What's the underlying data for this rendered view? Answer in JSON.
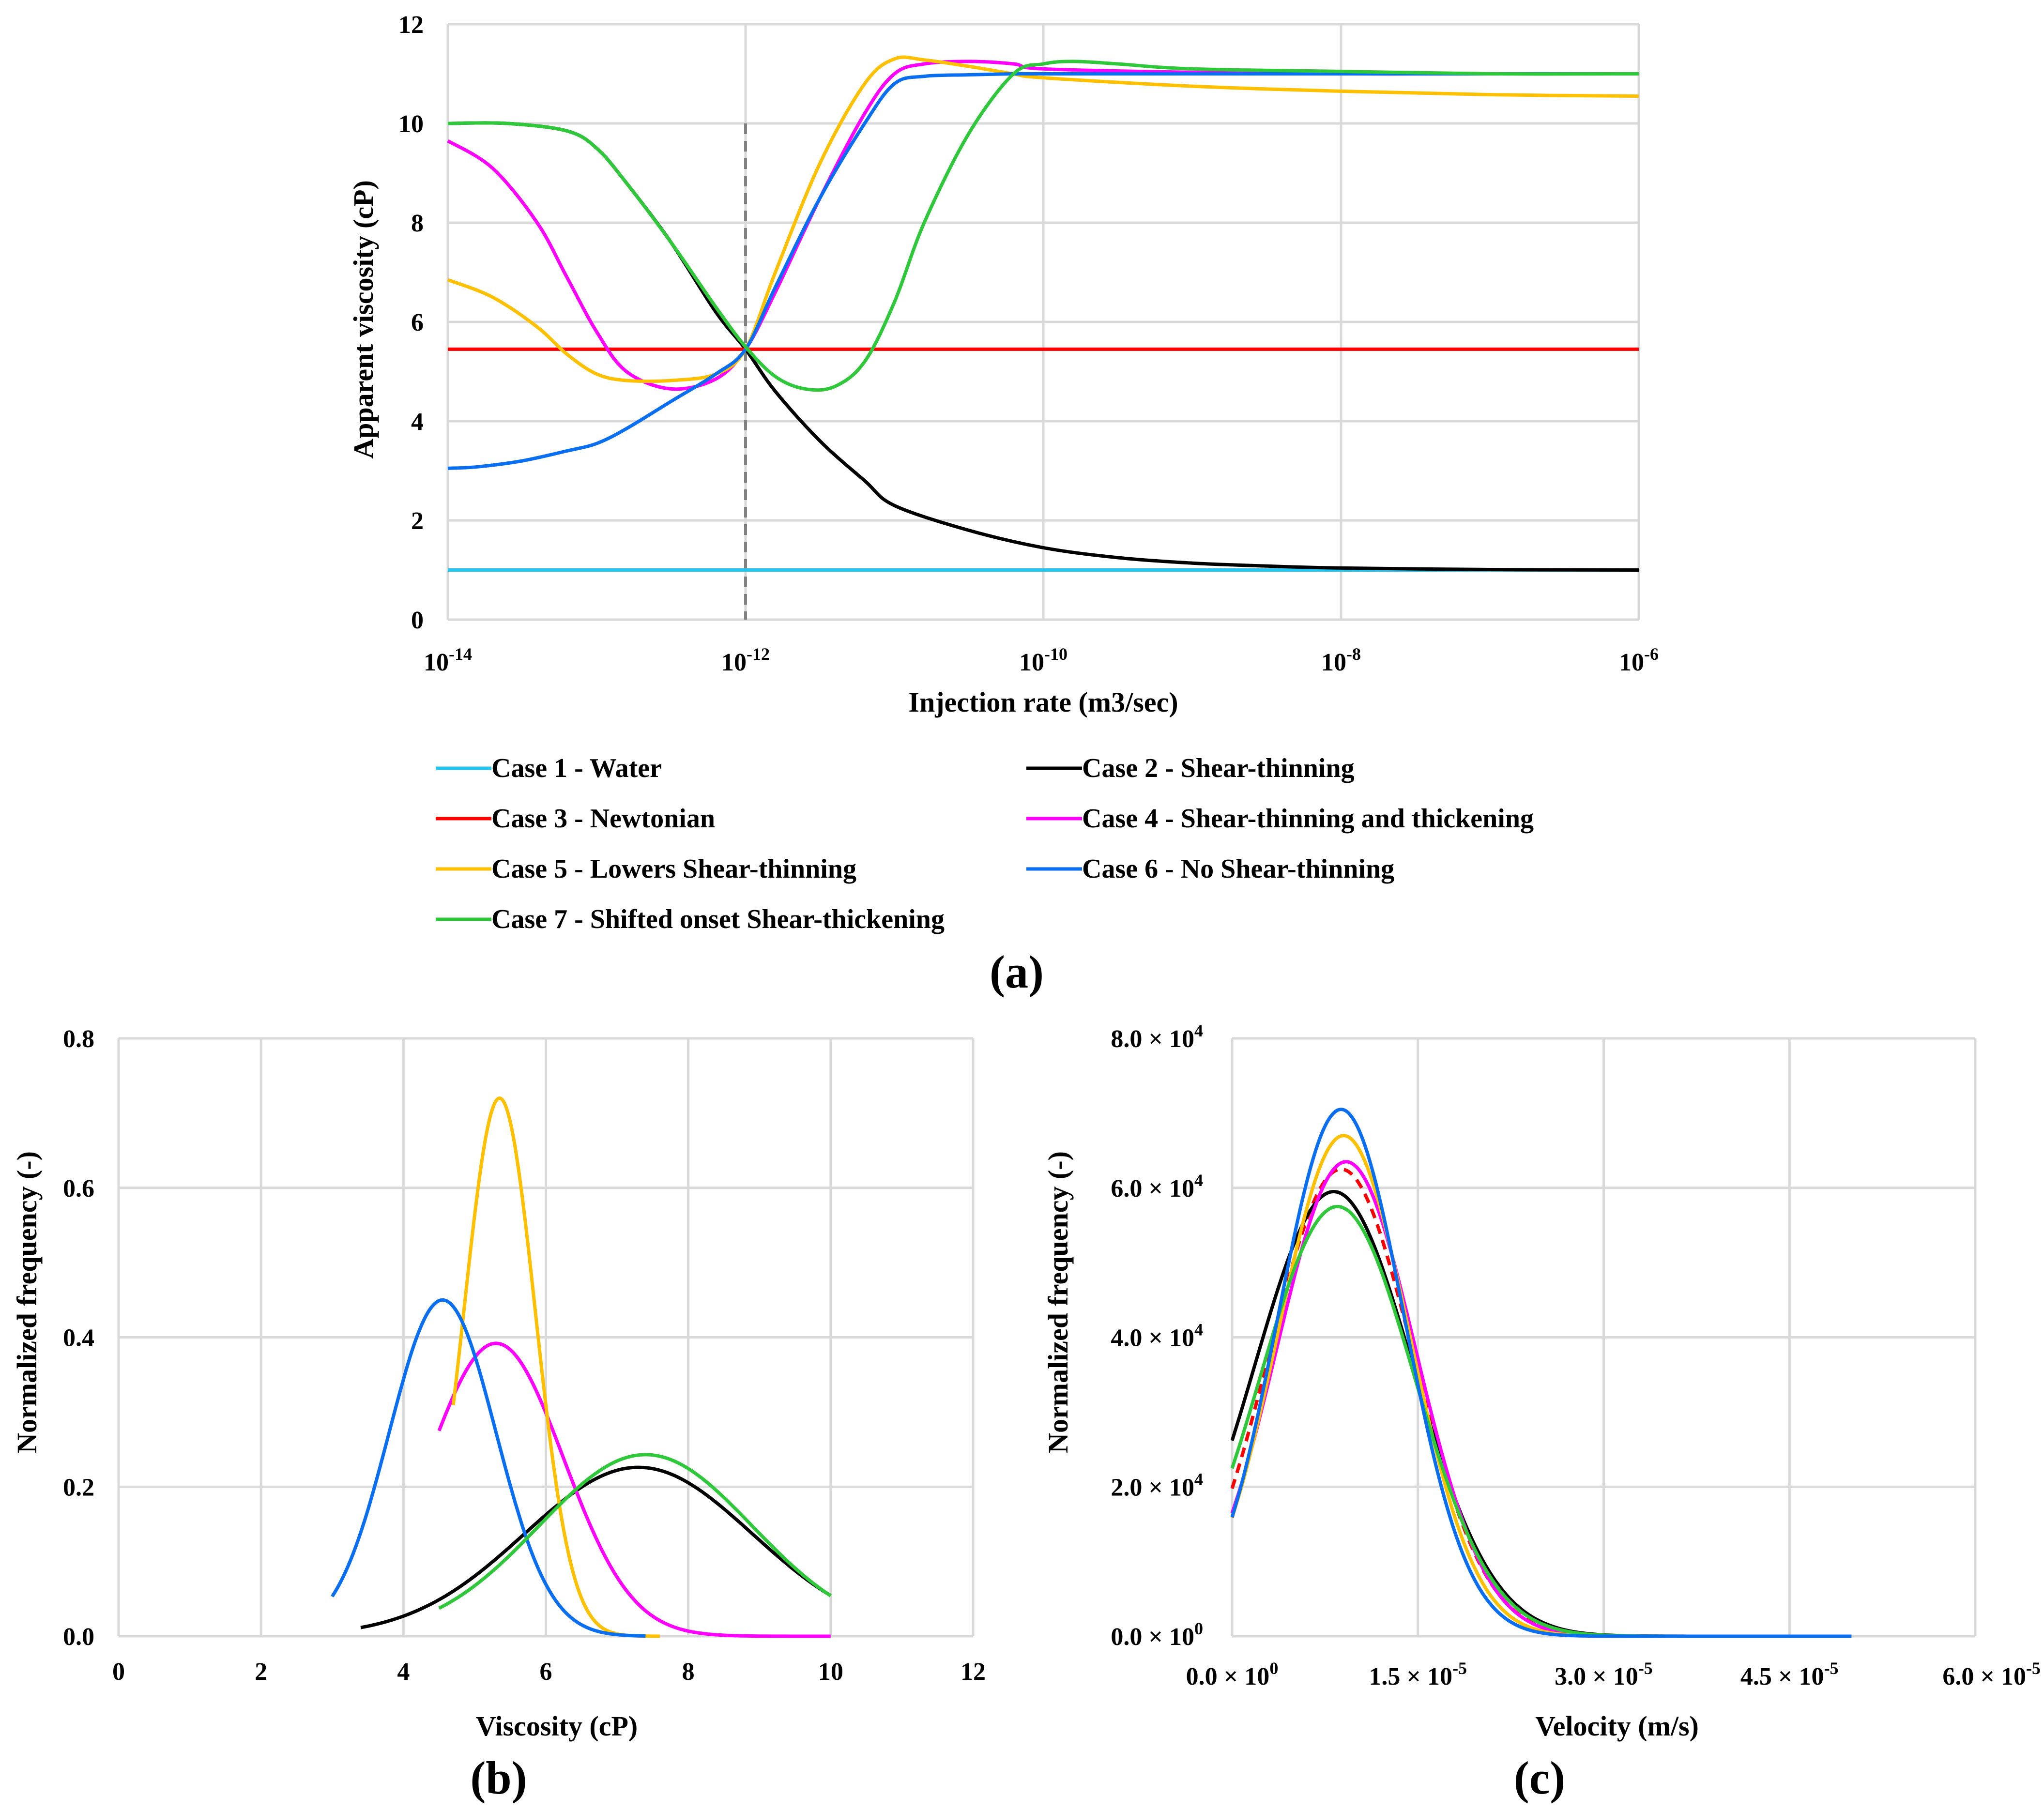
{
  "colors": {
    "water": "#22c4f0",
    "shear_thinning": "#000000",
    "newtonian": "#ff0000",
    "thinning_thickening": "#ff00ff",
    "lower_thinning": "#ffc000",
    "no_thinning": "#0a6ef0",
    "shifted": "#2ec83a",
    "grid": "#d9d9d9",
    "marker": "#808080"
  },
  "chart_data": [
    {
      "id": "a",
      "panel_label": "(a)",
      "type": "line",
      "xscale": "log10",
      "xlabel": "Injection rate (m3/sec)",
      "ylabel": "Apparent viscosity (cP)",
      "xlim_exp": [
        -14,
        -6
      ],
      "ylim": [
        0,
        12
      ],
      "x_ticks": [
        {
          "base": "10",
          "exp": "-14"
        },
        {
          "base": "10",
          "exp": "-12"
        },
        {
          "base": "10",
          "exp": "-10"
        },
        {
          "base": "10",
          "exp": "-8"
        },
        {
          "base": "10",
          "exp": "-6"
        }
      ],
      "y_ticks": [
        "0",
        "2",
        "4",
        "6",
        "8",
        "10",
        "12"
      ],
      "marker_line": {
        "x_exp": -12.0,
        "ymax": 10,
        "style": "dashed"
      },
      "series": [
        {
          "name": "Case 1 - Water",
          "color_key": "water",
          "x": [
            -14,
            -6
          ],
          "y": [
            1.0,
            1.0
          ]
        },
        {
          "name": "Case 2 - Shear-thinning",
          "color_key": "shear_thinning",
          "x": [
            -14,
            -13.6,
            -13.2,
            -13,
            -12.8,
            -12.5,
            -12.2,
            -12,
            -11.8,
            -11.5,
            -11.2,
            -11,
            -10.5,
            -10,
            -9.5,
            -9,
            -8.5,
            -8,
            -7,
            -6
          ],
          "y": [
            10.0,
            10.0,
            9.85,
            9.5,
            8.8,
            7.6,
            6.2,
            5.45,
            4.6,
            3.6,
            2.8,
            2.3,
            1.8,
            1.45,
            1.25,
            1.14,
            1.08,
            1.04,
            1.01,
            1.0
          ]
        },
        {
          "name": "Case 3 - Newtonian",
          "color_key": "newtonian",
          "x": [
            -14,
            -6
          ],
          "y": [
            5.45,
            5.45
          ]
        },
        {
          "name": "Case 4 - Shear-thinning and thickening",
          "color_key": "thinning_thickening",
          "x": [
            -14,
            -13.7,
            -13.4,
            -13.2,
            -13,
            -12.8,
            -12.5,
            -12.2,
            -12,
            -11.8,
            -11.5,
            -11.2,
            -11,
            -10.8,
            -10.5,
            -10.2,
            -10,
            -9,
            -8,
            -7,
            -6
          ],
          "y": [
            9.65,
            9.1,
            8.0,
            6.9,
            5.8,
            5.0,
            4.65,
            4.85,
            5.45,
            6.6,
            8.5,
            10.2,
            11.0,
            11.2,
            11.25,
            11.2,
            11.1,
            11.03,
            11.0,
            11.0,
            11.0
          ]
        },
        {
          "name": "Case 5 - Lowers Shear-thinning",
          "color_key": "lower_thinning",
          "x": [
            -14,
            -13.7,
            -13.4,
            -13.2,
            -13,
            -12.8,
            -12.5,
            -12.2,
            -12,
            -11.8,
            -11.5,
            -11.2,
            -11,
            -10.8,
            -10.5,
            -10.2,
            -10,
            -9,
            -8,
            -7,
            -6
          ],
          "y": [
            6.85,
            6.5,
            5.9,
            5.35,
            4.95,
            4.82,
            4.82,
            4.95,
            5.45,
            7.0,
            9.2,
            10.8,
            11.3,
            11.28,
            11.15,
            11.0,
            10.92,
            10.75,
            10.65,
            10.58,
            10.55
          ]
        },
        {
          "name": "Case 6 - No Shear-thinning",
          "color_key": "no_thinning",
          "x": [
            -14,
            -13.8,
            -13.5,
            -13.2,
            -13,
            -12.8,
            -12.5,
            -12.2,
            -12,
            -11.8,
            -11.5,
            -11.2,
            -11,
            -10.8,
            -10.5,
            -10.2,
            -10,
            -9,
            -8,
            -7,
            -6
          ],
          "y": [
            3.05,
            3.08,
            3.2,
            3.4,
            3.55,
            3.85,
            4.4,
            4.95,
            5.45,
            6.7,
            8.5,
            10.0,
            10.8,
            10.95,
            10.98,
            11.0,
            11.0,
            11.0,
            11.0,
            11.0,
            11.0
          ]
        },
        {
          "name": "Case 7 - Shifted onset Shear-thickening",
          "color_key": "shifted",
          "x": [
            -14,
            -13.6,
            -13.2,
            -13,
            -12.8,
            -12.5,
            -12.2,
            -12,
            -11.8,
            -11.6,
            -11.4,
            -11.2,
            -11,
            -10.8,
            -10.5,
            -10.2,
            -10,
            -9.8,
            -9.5,
            -9,
            -8,
            -7,
            -6
          ],
          "y": [
            10.0,
            10.0,
            9.85,
            9.5,
            8.8,
            7.6,
            6.3,
            5.5,
            4.9,
            4.65,
            4.7,
            5.2,
            6.4,
            8.0,
            9.8,
            11.0,
            11.2,
            11.25,
            11.2,
            11.1,
            11.05,
            11.0,
            11.0
          ]
        }
      ]
    },
    {
      "id": "b",
      "panel_label": "(b)",
      "type": "line",
      "xlabel": "Viscosity (cP)",
      "ylabel": "Normalized frequency (-)",
      "xlim": [
        0,
        12
      ],
      "ylim": [
        0,
        0.8
      ],
      "x_ticks": [
        "0",
        "2",
        "4",
        "6",
        "8",
        "10",
        "12"
      ],
      "y_ticks": [
        "0.0",
        "0.2",
        "0.4",
        "0.6",
        "0.8"
      ],
      "series": [
        {
          "name": "Case 2 - Shear-thinning",
          "color_key": "shear_thinning",
          "dist": {
            "mean": 7.3,
            "sd": 1.6,
            "amp": 0.226,
            "from": 3.4,
            "to": 10.0
          }
        },
        {
          "name": "Case 4 - Shear-thinning and thickening",
          "color_key": "thinning_thickening",
          "dist": {
            "mean": 5.3,
            "sd": 0.95,
            "amp": 0.392,
            "from": 4.5,
            "to": 10.0
          }
        },
        {
          "name": "Case 5 - Lowers Shear-thinning",
          "color_key": "lower_thinning",
          "dist": {
            "mean": 5.35,
            "sd": 0.5,
            "amp": 0.72,
            "from": 4.7,
            "to": 7.6
          }
        },
        {
          "name": "Case 6 - No Shear-thinning",
          "color_key": "no_thinning",
          "dist": {
            "mean": 4.55,
            "sd": 0.75,
            "amp": 0.45,
            "from": 3.0,
            "to": 7.4
          }
        },
        {
          "name": "Case 7 - Shifted onset Shear-thickening",
          "color_key": "shifted",
          "dist": {
            "mean": 7.4,
            "sd": 1.5,
            "amp": 0.243,
            "from": 4.5,
            "to": 10.0
          }
        }
      ]
    },
    {
      "id": "c",
      "panel_label": "(c)",
      "type": "line",
      "xlabel": "Velocity (m/s)",
      "ylabel": "Normalized frequency (-)",
      "xlim": [
        0,
        6e-05
      ],
      "ylim": [
        0,
        80000
      ],
      "x_ticks": [
        {
          "mant": "0.0",
          "exp": "0"
        },
        {
          "mant": "1.5",
          "exp": "-5"
        },
        {
          "mant": "3.0",
          "exp": "-5"
        },
        {
          "mant": "4.5",
          "exp": "-5"
        },
        {
          "mant": "6.0",
          "exp": "-5"
        }
      ],
      "y_ticks": [
        {
          "mant": "0.0",
          "exp": "0"
        },
        {
          "mant": "2.0",
          "exp": "4"
        },
        {
          "mant": "4.0",
          "exp": "4"
        },
        {
          "mant": "6.0",
          "exp": "4"
        },
        {
          "mant": "8.0",
          "exp": "4"
        }
      ],
      "series": [
        {
          "name": "Case 1 - Water",
          "color_key": "water",
          "dashed": true,
          "dist": {
            "mean": 8.8e-06,
            "sd": 5.8e-06,
            "amp": 62500,
            "from": 0,
            "to": 5e-05
          }
        },
        {
          "name": "Case 3 - Newtonian",
          "color_key": "newtonian",
          "dashed": true,
          "dist": {
            "mean": 8.8e-06,
            "sd": 5.8e-06,
            "amp": 62500,
            "from": 0,
            "to": 5e-05
          }
        },
        {
          "name": "Case 2 - Shear-thinning",
          "color_key": "shear_thinning",
          "dist": {
            "mean": 8.2e-06,
            "sd": 6.4e-06,
            "amp": 59500,
            "from": 0,
            "to": 5e-05
          }
        },
        {
          "name": "Case 4 - Shear-thinning and thickening",
          "color_key": "thinning_thickening",
          "dist": {
            "mean": 9.2e-06,
            "sd": 5.6e-06,
            "amp": 63500,
            "from": 0,
            "to": 5e-05
          }
        },
        {
          "name": "Case 5 - Lowers Shear-thinning",
          "color_key": "lower_thinning",
          "dist": {
            "mean": 9e-06,
            "sd": 5.3e-06,
            "amp": 67000,
            "from": 0,
            "to": 5e-05
          }
        },
        {
          "name": "Case 7 - Shifted onset Shear-thickening",
          "color_key": "shifted",
          "dist": {
            "mean": 8.5e-06,
            "sd": 6.2e-06,
            "amp": 57500,
            "from": 0,
            "to": 5e-05
          }
        },
        {
          "name": "Case 6 - No Shear-thinning",
          "color_key": "no_thinning",
          "dist": {
            "mean": 8.8e-06,
            "sd": 5.1e-06,
            "amp": 70500,
            "from": 0,
            "to": 5e-05
          }
        }
      ]
    }
  ],
  "legend": {
    "items": [
      {
        "label": "Case 1 - Water",
        "color_key": "water"
      },
      {
        "label": "Case 2 - Shear-thinning",
        "color_key": "shear_thinning"
      },
      {
        "label": "Case 3 - Newtonian",
        "color_key": "newtonian"
      },
      {
        "label": "Case 4 - Shear-thinning and thickening",
        "color_key": "thinning_thickening"
      },
      {
        "label": "Case 5 - Lowers Shear-thinning",
        "color_key": "lower_thinning"
      },
      {
        "label": "Case 6 - No Shear-thinning",
        "color_key": "no_thinning"
      },
      {
        "label": "Case 7 - Shifted onset Shear-thickening",
        "color_key": "shifted"
      }
    ]
  },
  "times_symbol": "×"
}
